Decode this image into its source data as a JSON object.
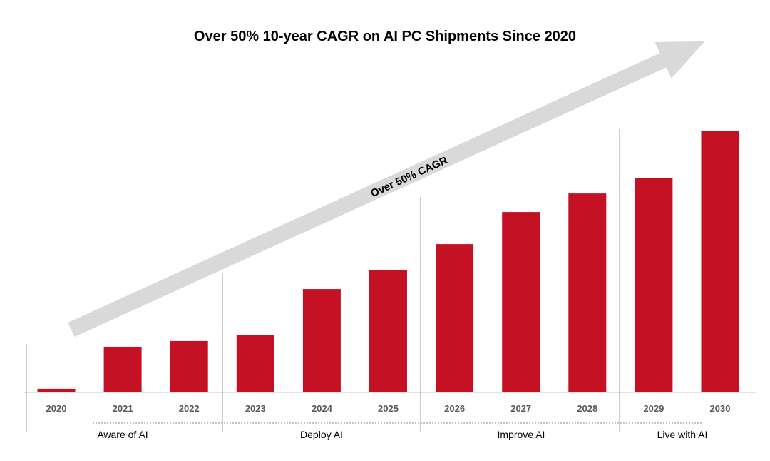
{
  "chart_data": {
    "type": "bar",
    "title": "Over 50% 10-year CAGR on AI PC Shipments Since 2020",
    "xlabel": "",
    "ylabel": "",
    "categories": [
      "2020",
      "2021",
      "2022",
      "2023",
      "2024",
      "2025",
      "2026",
      "2027",
      "2028",
      "2029",
      "2030"
    ],
    "values": [
      1.4,
      17.5,
      19.7,
      22.1,
      39.6,
      47.0,
      56.8,
      69.1,
      76.2,
      82.2,
      100
    ],
    "ylim": [
      0,
      100
    ],
    "grid": false,
    "bar_color": "#C41224",
    "arrow_label": "Over 50% CAGR",
    "arrow_color": "#D9D9D9",
    "phases": [
      {
        "label": "Aware of AI",
        "years": [
          "2020",
          "2021",
          "2022"
        ]
      },
      {
        "label": "Deploy AI",
        "years": [
          "2023",
          "2024",
          "2025"
        ]
      },
      {
        "label": "Improve AI",
        "years": [
          "2026",
          "2027",
          "2028"
        ]
      },
      {
        "label": "Live with AI",
        "years": [
          "2029",
          "2030"
        ]
      }
    ]
  }
}
